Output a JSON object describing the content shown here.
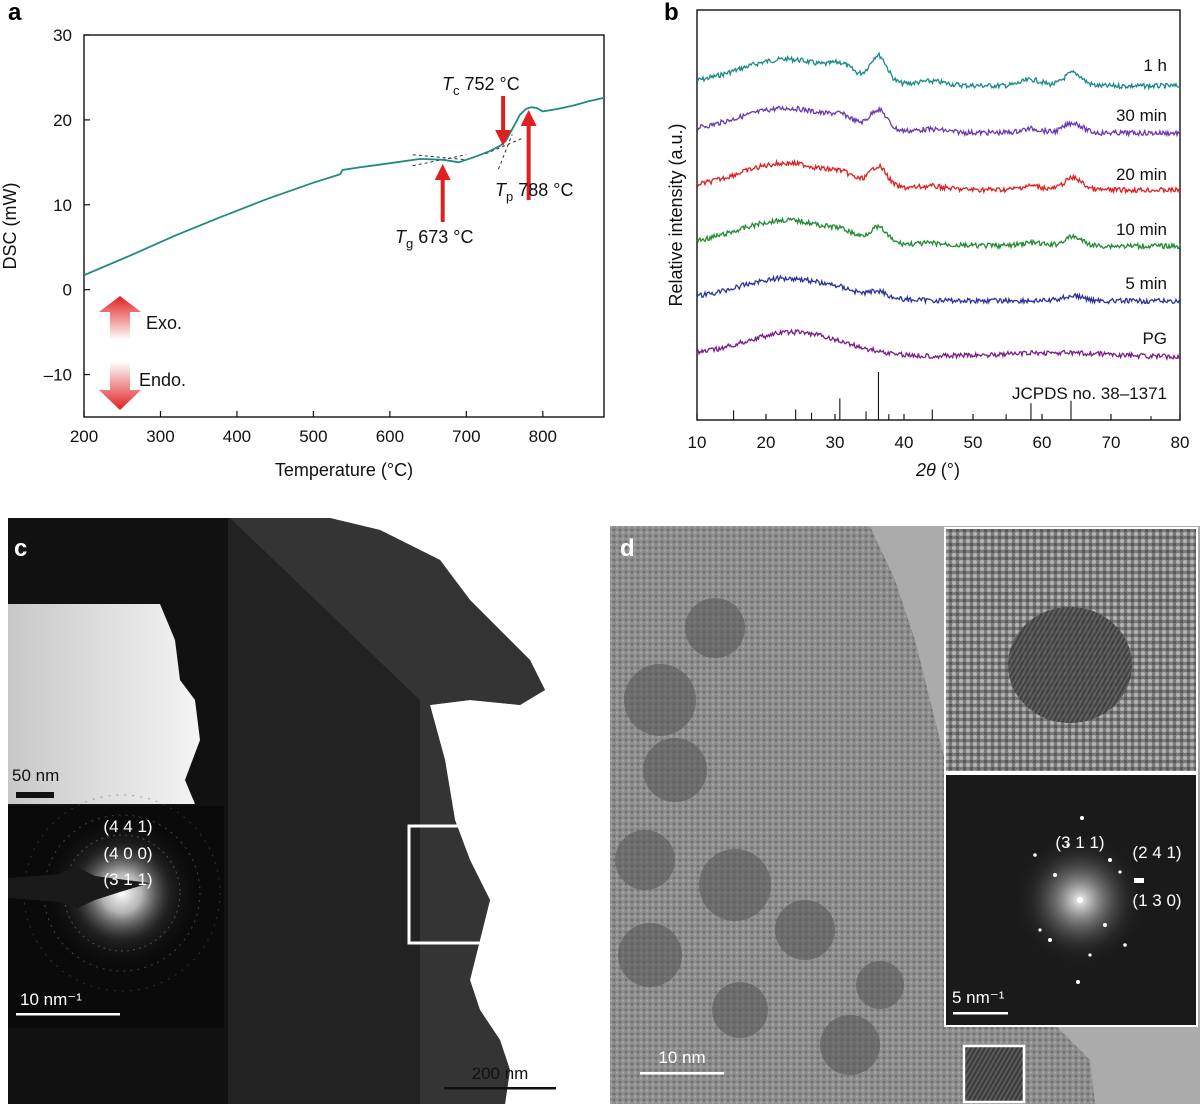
{
  "panels": {
    "a": {
      "label": "a"
    },
    "b": {
      "label": "b"
    },
    "c": {
      "label": "c"
    },
    "d": {
      "label": "d"
    }
  },
  "chart_data": [
    {
      "id": "a",
      "type": "line",
      "xlabel": "Temperature (°C)",
      "ylabel": "DSC (mW)",
      "xlim": [
        200,
        880
      ],
      "ylim": [
        -15,
        30
      ],
      "xticks": [
        200,
        300,
        400,
        500,
        600,
        700,
        800
      ],
      "yticks": [
        30,
        20,
        10,
        0,
        -10
      ],
      "ytick_labels": [
        "30",
        "20",
        "10",
        "0",
        "–10"
      ],
      "line_color": "#1f8a80",
      "series": [
        {
          "x": [
            200,
            260,
            320,
            380,
            440,
            500,
            535,
            538,
            560,
            600,
            640,
            670,
            690,
            710,
            730,
            745,
            752,
            760,
            770,
            778,
            785,
            792,
            800,
            820,
            840,
            860,
            880
          ],
          "y": [
            1.7,
            4.0,
            6.4,
            8.6,
            10.7,
            12.6,
            13.6,
            14.1,
            14.4,
            14.9,
            15.4,
            15.3,
            15.0,
            15.6,
            16.3,
            17.0,
            17.6,
            18.9,
            20.6,
            21.3,
            21.5,
            21.4,
            21.0,
            21.3,
            21.7,
            22.2,
            22.6
          ]
        }
      ],
      "annotations": {
        "tc": {
          "sym": "T",
          "sub": "c",
          "value": "752 °C",
          "x": 752
        },
        "tp": {
          "sym": "T",
          "sub": "p",
          "value": "788 °C",
          "x": 788
        },
        "tg": {
          "sym": "T",
          "sub": "g",
          "value": "673 °C",
          "x": 673
        }
      },
      "arrow_color": "#e02020",
      "legend_arrows": {
        "exo": "Exo.",
        "endo": "Endo."
      }
    },
    {
      "id": "b",
      "type": "line",
      "xlabel_symbol": "2θ",
      "xlabel_unit": " (°)",
      "ylabel": "Relative intensity (a.u.)",
      "xlim": [
        10,
        80
      ],
      "xticks": [
        10,
        20,
        30,
        40,
        50,
        60,
        70,
        80
      ],
      "series": [
        {
          "name": "1 h",
          "color": "#1a8a86",
          "peaks": [
            [
              23,
              7,
              26
            ],
            [
              31,
              1.5,
              9
            ],
            [
              36.3,
              1.2,
              26
            ],
            [
              44,
              2,
              4
            ],
            [
              58.5,
              1.5,
              6
            ],
            [
              64.5,
              1.3,
              13
            ]
          ]
        },
        {
          "name": "30 min",
          "color": "#6a3ab0",
          "peaks": [
            [
              23,
              7,
              24
            ],
            [
              31,
              1.5,
              6
            ],
            [
              36.3,
              1.2,
              19
            ],
            [
              44,
              2,
              3
            ],
            [
              58.5,
              1.5,
              4
            ],
            [
              64.5,
              1.3,
              10
            ]
          ]
        },
        {
          "name": "20 min",
          "color": "#e02020",
          "peaks": [
            [
              23,
              7,
              26
            ],
            [
              31,
              1.5,
              5
            ],
            [
              36.3,
              1.2,
              19
            ],
            [
              44,
              2,
              3
            ],
            [
              58.5,
              1.5,
              4
            ],
            [
              64.5,
              1.3,
              12
            ]
          ]
        },
        {
          "name": "10 min",
          "color": "#238a33",
          "peaks": [
            [
              23,
              7,
              25
            ],
            [
              31,
              1.5,
              4
            ],
            [
              36.3,
              1.2,
              14
            ],
            [
              44,
              2,
              2
            ],
            [
              58.5,
              1.5,
              3
            ],
            [
              64.5,
              1.3,
              9
            ]
          ]
        },
        {
          "name": "5 min",
          "color": "#2a3599",
          "peaks": [
            [
              23,
              7,
              22
            ],
            [
              31,
              1.5,
              2
            ],
            [
              36.3,
              1.2,
              6
            ],
            [
              64.5,
              1.5,
              5
            ]
          ]
        },
        {
          "name": "PG",
          "color": "#7a1f8a",
          "peaks": [
            [
              24,
              7,
              24
            ],
            [
              62,
              8,
              4
            ]
          ]
        }
      ],
      "reference": {
        "label": "JCPDS no. 38–1371",
        "x": [
          15.3,
          24.3,
          26.6,
          30.7,
          34.5,
          36.3,
          37.8,
          44.1,
          54.8,
          58.4,
          64.2,
          75.8
        ],
        "intensity": [
          0.2,
          0.22,
          0.15,
          0.45,
          0.18,
          1.0,
          0.12,
          0.22,
          0.12,
          0.35,
          0.4,
          0.08
        ]
      }
    }
  ],
  "micrographs": {
    "c": {
      "scale_bar_main": "200 nm",
      "inset_top_scale": "50 nm",
      "diffraction_labels": [
        "(4 4 1)",
        "(4 0 0)",
        "(3 1 1)"
      ],
      "diffraction_scale": "10 nm⁻¹"
    },
    "d": {
      "scale_bar_main": "10 nm",
      "fft_labels": [
        "(3 1 1)",
        "(2 4 1)",
        "(1 3 0)"
      ],
      "fft_scale": "5 nm⁻¹"
    }
  }
}
